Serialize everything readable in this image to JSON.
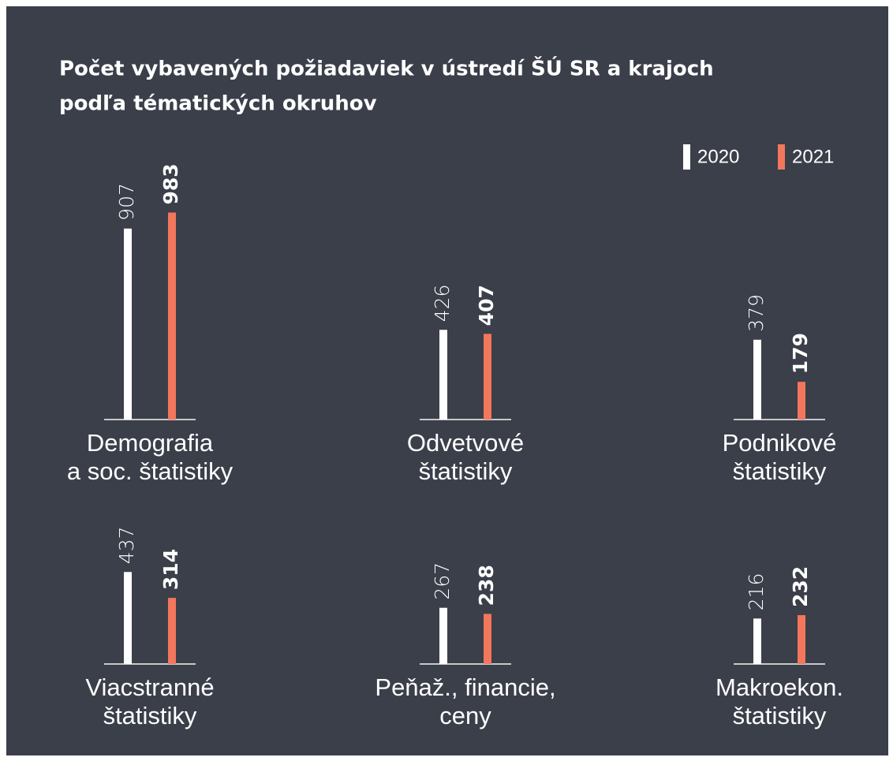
{
  "chart_data": {
    "type": "bar",
    "title": [
      "Počet vybavených požiadaviek v ústredí ŠÚ SR a krajoch",
      "podľa tématických  okruhov"
    ],
    "categories": [
      [
        "Demografia",
        "a soc. štatistiky"
      ],
      [
        "Odvetvové",
        "štatistiky"
      ],
      [
        "Podnikové",
        "štatistiky"
      ],
      [
        "Viacstranné",
        "štatistiky"
      ],
      [
        "Peňaž., financie,",
        "ceny"
      ],
      [
        "Makroekon.",
        "štatistiky"
      ]
    ],
    "series": [
      {
        "name": "2020",
        "color": "#ffffff",
        "values": [
          907,
          426,
          379,
          437,
          267,
          216
        ]
      },
      {
        "name": "2021",
        "color": "#f2775c",
        "values": [
          983,
          407,
          179,
          314,
          238,
          232
        ]
      }
    ],
    "legend": "top-right"
  }
}
